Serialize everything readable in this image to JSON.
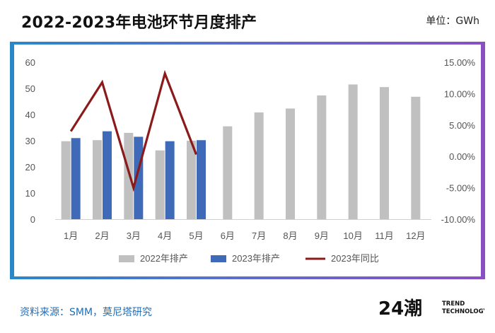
{
  "header": {
    "title": "2022-2023年电池环节月度排产",
    "unit": "单位：GWh"
  },
  "footer": {
    "source": "资料来源：SMM，莫尼塔研究",
    "logo_text": "24潮",
    "logo_line1": "TREND",
    "logo_line2": "TECHNOLOGY"
  },
  "colors": {
    "bar_2022": "#c0c0c0",
    "bar_2023": "#3f6ab8",
    "line_yoy": "#8b1a1a",
    "accent_blue": "#1e6fb8"
  },
  "chart_data": {
    "type": "bar",
    "categories": [
      "1月",
      "2月",
      "3月",
      "4月",
      "5月",
      "6月",
      "7月",
      "8月",
      "9月",
      "10月",
      "11月",
      "12月"
    ],
    "series": [
      {
        "name": "2022年排产",
        "type": "bar",
        "axis": "left",
        "values": [
          29.8,
          30.2,
          33,
          26.3,
          30,
          35.5,
          40.8,
          42.3,
          47.3,
          51.5,
          50.5,
          46.8
        ]
      },
      {
        "name": "2023年排产",
        "type": "bar",
        "axis": "left",
        "values": [
          31,
          33.6,
          31.5,
          29.8,
          30.2,
          null,
          null,
          null,
          null,
          null,
          null,
          null
        ]
      },
      {
        "name": "2023年同比",
        "type": "line",
        "axis": "right",
        "unit": "%",
        "values": [
          4.0,
          11.8,
          -5.0,
          13.2,
          0.3,
          null,
          null,
          null,
          null,
          null,
          null,
          null
        ]
      }
    ],
    "y_left": {
      "min": 0,
      "max": 60,
      "ticks": [
        "0",
        "10",
        "20",
        "30",
        "40",
        "50",
        "60"
      ]
    },
    "y_right": {
      "min": -10,
      "max": 15,
      "ticks": [
        "-10.00%",
        "-5.00%",
        "0.00%",
        "5.00%",
        "10.00%",
        "15.00%"
      ]
    },
    "legend_position": "bottom",
    "grid": false
  }
}
